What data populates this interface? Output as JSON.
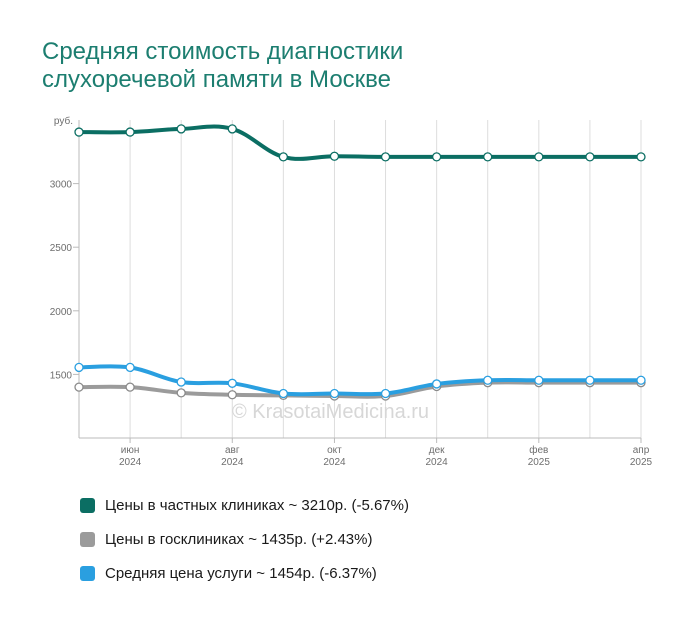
{
  "title_lines": [
    "Средняя стоимость диагностики",
    "слухоречевой памяти в Москве"
  ],
  "watermark": "© KrasotaiMedicina.ru",
  "chart_data": {
    "type": "line",
    "y_unit_label": "руб.",
    "y_ticks": [
      1500,
      2000,
      2500,
      3000
    ],
    "ylim": [
      1000,
      3500
    ],
    "x_labels": [
      {
        "month": "июн",
        "year": "2024"
      },
      {
        "month": "авг",
        "year": "2024"
      },
      {
        "month": "окт",
        "year": "2024"
      },
      {
        "month": "дек",
        "year": "2024"
      },
      {
        "month": "фев",
        "year": "2025"
      },
      {
        "month": "апр",
        "year": "2025"
      }
    ],
    "x": [
      "2024-05",
      "2024-06",
      "2024-07",
      "2024-08",
      "2024-09",
      "2024-10",
      "2024-11",
      "2024-12",
      "2025-01",
      "2025-02",
      "2025-03",
      "2025-04"
    ],
    "grid": true,
    "series": [
      {
        "name": "Цены в частных клиниках",
        "color": "#0b6e63",
        "values": [
          3405,
          3405,
          3430,
          3430,
          3210,
          3215,
          3210,
          3210,
          3210,
          3210,
          3210,
          3210
        ]
      },
      {
        "name": "Цены в госклиниках",
        "color": "#9b9b9b",
        "values": [
          1400,
          1400,
          1355,
          1340,
          1335,
          1330,
          1330,
          1405,
          1435,
          1435,
          1435,
          1435
        ]
      },
      {
        "name": "Средняя цена услуги",
        "color": "#2a9fe0",
        "values": [
          1555,
          1555,
          1440,
          1430,
          1350,
          1350,
          1350,
          1425,
          1454,
          1454,
          1454,
          1454
        ]
      }
    ]
  },
  "legend": [
    {
      "label": "Цены в частных клиниках ~ 3210р. (-5.67%)",
      "color": "#0b6e63"
    },
    {
      "label": "Цены в госклиниках ~ 1435р. (+2.43%)",
      "color": "#9b9b9b"
    },
    {
      "label": "Средняя цена услуги ~ 1454р. (-6.37%)",
      "color": "#2a9fe0"
    }
  ]
}
